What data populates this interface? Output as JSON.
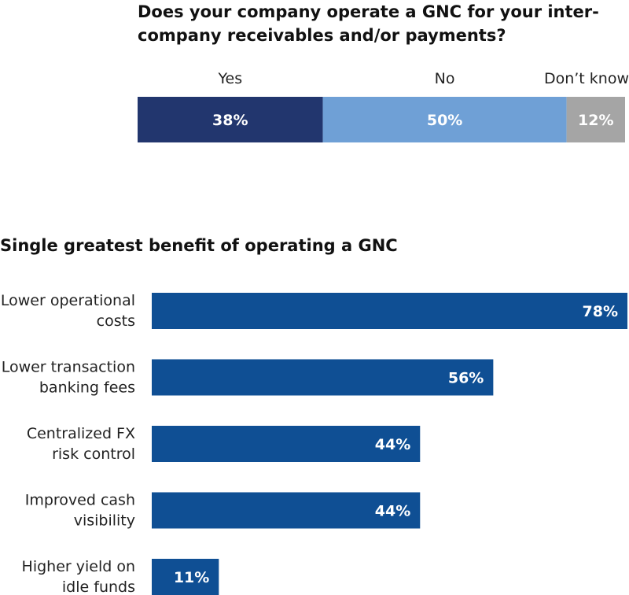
{
  "chart_data": [
    {
      "type": "bar",
      "stacked": true,
      "orientation": "horizontal",
      "title": "Does your company operate a GNC for your inter-company receivables and/or payments?",
      "categories": [
        "Yes",
        "No",
        "Don’t know"
      ],
      "values": [
        38,
        50,
        12
      ],
      "value_labels": [
        "38%",
        "50%",
        "12%"
      ],
      "colors": [
        "#22366e",
        "#6fa0d6",
        "#a5a5a5"
      ],
      "xlim": [
        0,
        100
      ]
    },
    {
      "type": "bar",
      "orientation": "horizontal",
      "title": "Single greatest benefit of operating a GNC",
      "categories": [
        [
          "Lower operational",
          "costs"
        ],
        [
          "Lower transaction",
          "banking fees"
        ],
        [
          "Centralized FX",
          "risk control"
        ],
        [
          "Improved cash",
          "visibility"
        ],
        [
          "Higher yield on",
          "idle funds"
        ]
      ],
      "values": [
        78,
        56,
        44,
        44,
        11
      ],
      "value_labels": [
        "78%",
        "56%",
        "44%",
        "44%",
        "11%"
      ],
      "color": "#0f4f94",
      "xlim": [
        0,
        78
      ]
    }
  ]
}
